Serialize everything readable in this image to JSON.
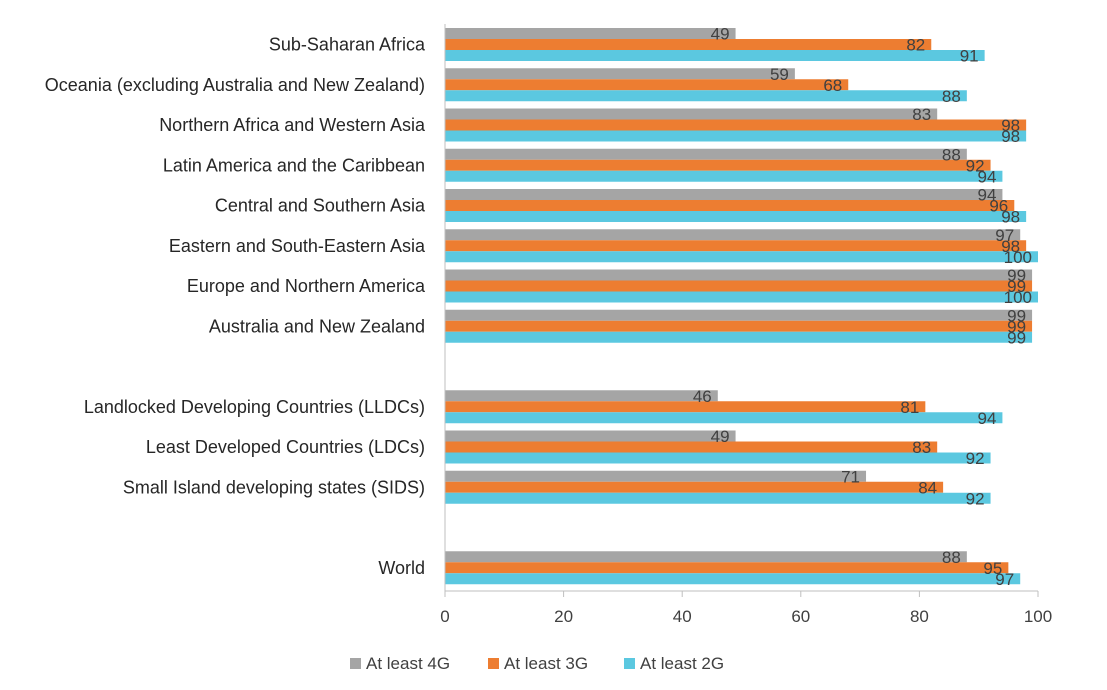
{
  "chart_data": {
    "type": "bar",
    "orientation": "horizontal",
    "title": "",
    "xlabel": "",
    "ylabel": "",
    "xlim": [
      0,
      100
    ],
    "x_ticks": [
      "0",
      "20",
      "40",
      "60",
      "80",
      "100"
    ],
    "grid": false,
    "legend_position": "bottom",
    "categories": [
      "Sub-Saharan Africa",
      "Oceania (excluding Australia and New Zealand)",
      "Northern Africa and Western Asia",
      "Latin America and the Caribbean",
      "Central and Southern Asia",
      "Eastern and South-Eastern Asia",
      "Europe and Northern America",
      "Australia and New Zealand",
      "",
      "Landlocked Developing Countries (LLDCs)",
      "Least Developed Countries (LDCs)",
      "Small Island developing states (SIDS)",
      "",
      "World"
    ],
    "series": [
      {
        "name": "At least 4G",
        "color": "#a5a5a5",
        "values": [
          49,
          59,
          83,
          88,
          94,
          97,
          99,
          99,
          null,
          46,
          49,
          71,
          null,
          88
        ]
      },
      {
        "name": "At least 3G",
        "color": "#ed7d31",
        "values": [
          82,
          68,
          98,
          92,
          96,
          98,
          99,
          99,
          null,
          81,
          83,
          84,
          null,
          95
        ]
      },
      {
        "name": "At least 2G",
        "color": "#5bc8e0",
        "values": [
          91,
          88,
          98,
          94,
          98,
          100,
          100,
          99,
          null,
          94,
          92,
          92,
          null,
          97
        ]
      }
    ]
  }
}
